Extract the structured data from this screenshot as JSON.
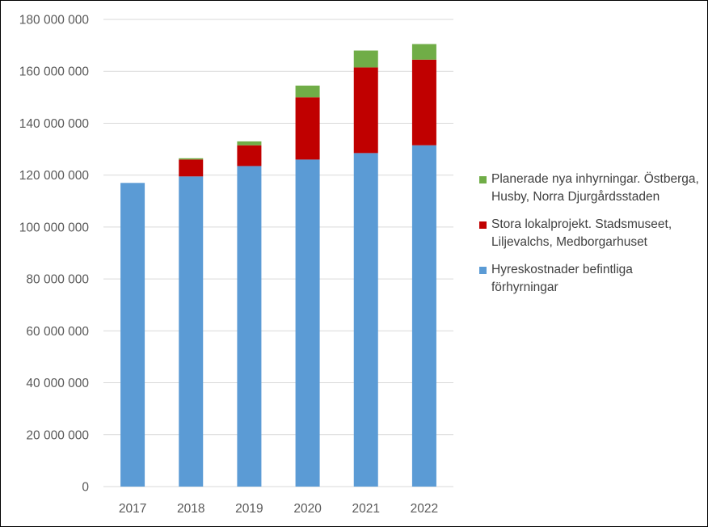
{
  "chart_data": {
    "type": "bar",
    "stacked": true,
    "categories": [
      "2017",
      "2018",
      "2019",
      "2020",
      "2021",
      "2022"
    ],
    "series": [
      {
        "name": "Hyreskostnader befintliga förhyrningar",
        "color": "#5b9bd5",
        "values": [
          117000000,
          119500000,
          123500000,
          126000000,
          128500000,
          131500000
        ]
      },
      {
        "name": "Stora lokalprojekt. Stadsmuseet, Liljevalchs, Medborgarhuset",
        "color": "#c00000",
        "values": [
          0,
          6500000,
          8000000,
          24000000,
          33000000,
          33000000
        ]
      },
      {
        "name": "Planerade nya inhyrningar. Östberga, Husby, Norra Djurgårdsstaden",
        "color": "#70ad47",
        "values": [
          0,
          500000,
          1500000,
          4500000,
          6500000,
          6000000
        ]
      }
    ],
    "ylim": [
      0,
      180000000
    ],
    "ytick_values": [
      0,
      20000000,
      40000000,
      60000000,
      80000000,
      100000000,
      120000000,
      140000000,
      160000000,
      180000000
    ],
    "ytick_labels": [
      "0",
      "20 000 000",
      "40 000 000",
      "60 000 000",
      "80 000 000",
      "100 000 000",
      "120 000 000",
      "140 000 000",
      "160 000 000",
      "180 000 000"
    ],
    "grid": true,
    "legend_position": "right"
  }
}
